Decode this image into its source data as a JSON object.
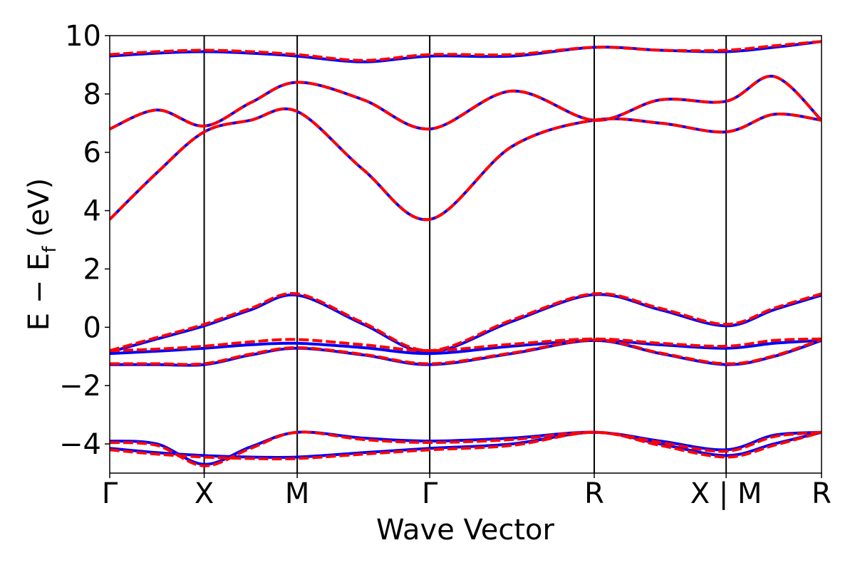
{
  "chart_data": {
    "type": "line",
    "xlabel": "Wave Vector",
    "ylabel": "E − E_f (eV)",
    "ylabel_parts": {
      "main": "E  −  E",
      "sub": "f",
      "unit": " (eV)"
    },
    "ylim": [
      -5,
      10
    ],
    "yticks": [
      -4,
      -2,
      0,
      2,
      4,
      6,
      8,
      10
    ],
    "ytick_labels": [
      "−4",
      "−2",
      "0",
      "2",
      "4",
      "6",
      "8",
      "10"
    ],
    "kpath_ticks": [
      {
        "label": "Γ",
        "x": 0.0
      },
      {
        "label": "X",
        "x": 0.1327
      },
      {
        "label": "M",
        "x": 0.2634
      },
      {
        "label": "Γ",
        "x": 0.4496
      },
      {
        "label": "R",
        "x": 0.6807
      },
      {
        "label": "X | M",
        "x": 0.866
      },
      {
        "label": "R",
        "x": 1.0
      }
    ],
    "segment_boundaries": [
      0.1327,
      0.2634,
      0.4496,
      0.6807,
      0.866
    ],
    "series": [
      {
        "style": "solid",
        "color": "#0000ff",
        "bands": [
          {
            "x": [
              0,
              0.0664,
              0.1327,
              0.1981,
              0.2634,
              0.3565,
              0.4496,
              0.5652,
              0.6807,
              0.7734,
              0.866,
              0.933,
              1.0
            ],
            "y": [
              -1.28,
              -1.28,
              -1.28,
              -0.95,
              -0.72,
              -0.95,
              -1.28,
              -0.9,
              -0.45,
              -0.9,
              -1.28,
              -1.0,
              -0.45
            ]
          },
          {
            "x": [
              0,
              0.0664,
              0.1327,
              0.1981,
              0.2634,
              0.3565,
              0.4496,
              0.5652,
              0.6807,
              0.7734,
              0.866,
              0.933,
              1.0
            ],
            "y": [
              -0.9,
              -0.82,
              -0.72,
              -0.6,
              -0.55,
              -0.7,
              -0.9,
              -0.65,
              -0.45,
              -0.6,
              -0.72,
              -0.55,
              -0.45
            ]
          },
          {
            "x": [
              0,
              0.0664,
              0.1327,
              0.1981,
              0.2634,
              0.3565,
              0.4496,
              0.5652,
              0.6807,
              0.7734,
              0.866,
              0.933,
              1.0
            ],
            "y": [
              -0.85,
              -0.4,
              0.05,
              0.6,
              1.1,
              0.1,
              -0.85,
              0.2,
              1.12,
              0.6,
              0.05,
              0.6,
              1.1
            ]
          },
          {
            "x": [
              0,
              0.0664,
              0.1327,
              0.1981,
              0.2634,
              0.3565,
              0.4496,
              0.5652,
              0.6807,
              0.7734,
              0.866,
              0.933,
              1.0
            ],
            "y": [
              3.7,
              5.3,
              6.7,
              7.1,
              7.4,
              5.4,
              3.7,
              6.2,
              7.1,
              7.0,
              6.7,
              7.3,
              7.1
            ]
          },
          {
            "x": [
              0,
              0.0664,
              0.1327,
              0.1981,
              0.2634,
              0.3565,
              0.4496,
              0.5652,
              0.6807,
              0.7734,
              0.866,
              0.933,
              1.0
            ],
            "y": [
              6.8,
              7.45,
              6.9,
              7.7,
              8.4,
              7.8,
              6.8,
              8.1,
              7.1,
              7.8,
              7.75,
              8.6,
              7.1
            ]
          },
          {
            "x": [
              0,
              0.0664,
              0.1327,
              0.1981,
              0.2634,
              0.3565,
              0.4496,
              0.5652,
              0.6807,
              0.7734,
              0.866,
              0.933,
              1.0
            ],
            "y": [
              9.3,
              9.4,
              9.45,
              9.4,
              9.3,
              9.1,
              9.3,
              9.3,
              9.6,
              9.5,
              9.45,
              9.6,
              9.8
            ]
          },
          {
            "x": [
              0,
              0.0664,
              0.1327,
              0.1981,
              0.2634,
              0.3565,
              0.4496,
              0.5652,
              0.6807,
              0.7734,
              0.866,
              0.933,
              1.0
            ],
            "y": [
              -4.15,
              -4.3,
              -4.4,
              -4.45,
              -4.45,
              -4.3,
              -4.15,
              -4.0,
              -3.6,
              -4.0,
              -4.4,
              -4.0,
              -3.6
            ]
          },
          {
            "x": [
              0,
              0.0664,
              0.1327,
              0.1981,
              0.2634,
              0.3565,
              0.4496,
              0.5652,
              0.6807,
              0.7734,
              0.866,
              0.933,
              1.0
            ],
            "y": [
              -3.9,
              -4.0,
              -4.7,
              -4.1,
              -3.6,
              -3.8,
              -3.9,
              -3.8,
              -3.6,
              -3.9,
              -4.2,
              -3.7,
              -3.6
            ]
          }
        ]
      },
      {
        "style": "dashed",
        "color": "#ff0000",
        "bands": [
          {
            "x": [
              0,
              0.0664,
              0.1327,
              0.1981,
              0.2634,
              0.3565,
              0.4496,
              0.5652,
              0.6807,
              0.7734,
              0.866,
              0.933,
              1.0
            ],
            "y": [
              -1.25,
              -1.25,
              -1.25,
              -0.92,
              -0.7,
              -0.93,
              -1.25,
              -0.88,
              -0.43,
              -0.88,
              -1.25,
              -0.98,
              -0.42
            ]
          },
          {
            "x": [
              0,
              0.0664,
              0.1327,
              0.1981,
              0.2634,
              0.3565,
              0.4496,
              0.5652,
              0.6807,
              0.7734,
              0.866,
              0.933,
              1.0
            ],
            "y": [
              -0.8,
              -0.75,
              -0.65,
              -0.5,
              -0.42,
              -0.6,
              -0.8,
              -0.58,
              -0.4,
              -0.55,
              -0.65,
              -0.45,
              -0.4
            ]
          },
          {
            "x": [
              0,
              0.0664,
              0.1327,
              0.1981,
              0.2634,
              0.3565,
              0.4496,
              0.5652,
              0.6807,
              0.7734,
              0.866,
              0.933,
              1.0
            ],
            "y": [
              -0.8,
              -0.35,
              0.1,
              0.65,
              1.15,
              0.15,
              -0.8,
              0.25,
              1.15,
              0.65,
              0.1,
              0.65,
              1.15
            ]
          },
          {
            "x": [
              0,
              0.0664,
              0.1327,
              0.1981,
              0.2634,
              0.3565,
              0.4496,
              0.5652,
              0.6807,
              0.7734,
              0.866,
              0.933,
              1.0
            ],
            "y": [
              3.7,
              5.3,
              6.7,
              7.1,
              7.4,
              5.4,
              3.7,
              6.2,
              7.1,
              7.0,
              6.7,
              7.3,
              7.1
            ]
          },
          {
            "x": [
              0,
              0.0664,
              0.1327,
              0.1981,
              0.2634,
              0.3565,
              0.4496,
              0.5652,
              0.6807,
              0.7734,
              0.866,
              0.933,
              1.0
            ],
            "y": [
              6.8,
              7.45,
              6.9,
              7.7,
              8.4,
              7.8,
              6.8,
              8.1,
              7.1,
              7.8,
              7.75,
              8.6,
              7.1
            ]
          },
          {
            "x": [
              0,
              0.0664,
              0.1327,
              0.1981,
              0.2634,
              0.3565,
              0.4496,
              0.5652,
              0.6807,
              0.7734,
              0.866,
              0.933,
              1.0
            ],
            "y": [
              9.35,
              9.45,
              9.5,
              9.45,
              9.35,
              9.15,
              9.35,
              9.35,
              9.6,
              9.5,
              9.5,
              9.65,
              9.8
            ]
          },
          {
            "x": [
              0,
              0.0664,
              0.1327,
              0.1981,
              0.2634,
              0.3565,
              0.4496,
              0.5652,
              0.6807,
              0.7734,
              0.866,
              0.933,
              1.0
            ],
            "y": [
              -4.2,
              -4.35,
              -4.45,
              -4.5,
              -4.5,
              -4.35,
              -4.2,
              -4.05,
              -3.6,
              -4.05,
              -4.45,
              -4.05,
              -3.6
            ]
          },
          {
            "x": [
              0,
              0.0664,
              0.1327,
              0.1981,
              0.2634,
              0.3565,
              0.4496,
              0.5652,
              0.6807,
              0.7734,
              0.866,
              0.933,
              1.0
            ],
            "y": [
              -3.95,
              -4.05,
              -4.75,
              -4.15,
              -3.6,
              -3.85,
              -3.95,
              -3.85,
              -3.6,
              -3.95,
              -4.25,
              -3.75,
              -3.6
            ]
          }
        ]
      }
    ]
  }
}
